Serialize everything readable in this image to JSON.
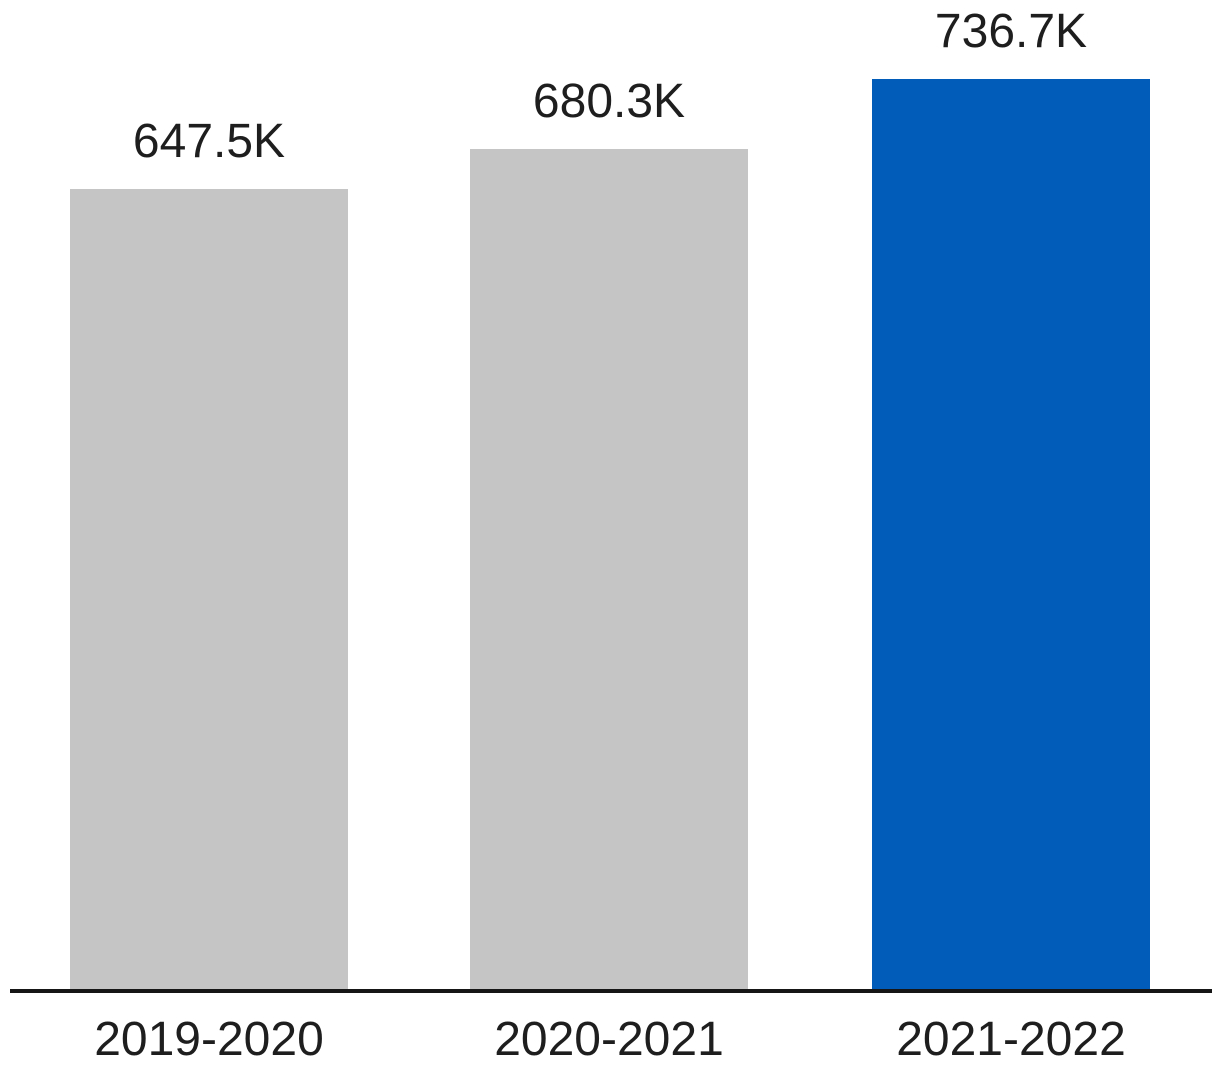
{
  "chart_data": {
    "type": "bar",
    "title": "",
    "xlabel": "",
    "ylabel": "",
    "categories": [
      "2019-2020",
      "2020-2021",
      "2021-2022"
    ],
    "values": [
      647500,
      680300,
      736700
    ],
    "value_labels": [
      "647.5K",
      "680.3K",
      "736.7K"
    ],
    "bar_colors": [
      "#C5C5C5",
      "#C5C5C5",
      "#005CB8"
    ],
    "highlighted_category": "2021-2022",
    "ylim": [
      0,
      736700
    ],
    "grid": false,
    "legend": "none",
    "axis_labels_position": "bottom"
  },
  "colors": {
    "bar_default": "#C5C5C5",
    "bar_highlight": "#005CB8",
    "axis_line": "#161616",
    "label_text": "#1E1E1E",
    "background": "#FFFFFF"
  }
}
